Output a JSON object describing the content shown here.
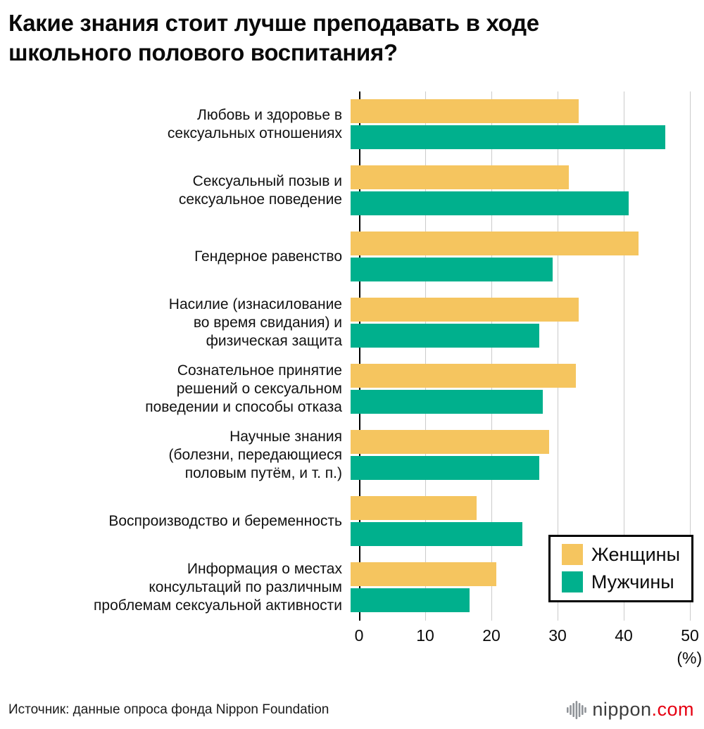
{
  "header": {
    "title": "Какие знания стоит лучше преподавать в ходе\nшкольного полового воспитания?"
  },
  "chart_data": {
    "type": "bar",
    "orientation": "horizontal",
    "title": "Какие знания стоит лучше преподавать в ходе школьного полового воспитания?",
    "categories": [
      "Любовь и здоровье в\nсексуальных отношениях",
      "Сексуальный позыв и\nсексуальное поведение",
      "Гендерное равенство",
      "Насилие (изнасилование\nво время свидания) и\nфизическая защита",
      "Сознательное принятие\nрешений о сексуальном\nповедении и способы отказа",
      "Научные знания\n(болезни, передающиеся\nполовым путём, и т. п.)",
      "Воспроизводство и беременность",
      "Информация о местах\nконсультаций по различным\nпроблемам сексуальной активности"
    ],
    "series": [
      {
        "name": "Женщины",
        "values": [
          34.5,
          33,
          43.5,
          34.5,
          34,
          30,
          19,
          22
        ]
      },
      {
        "name": "Мужчины",
        "values": [
          47.5,
          42,
          30.5,
          28.5,
          29,
          28.5,
          26,
          18
        ]
      }
    ],
    "xlim": [
      0,
      50
    ],
    "ticks": [
      0,
      10,
      20,
      30,
      40,
      50
    ],
    "unit_label": "(%)",
    "legend_position": "bottom-right",
    "grid": "vertical-gridlines"
  },
  "colors": {
    "women": "#f5c55f",
    "men": "#00b08d",
    "gridline": "#cbcbcb",
    "axis": "#000000",
    "logo_red": "#e60012"
  },
  "footer": {
    "source": "Источник: данные опроса фонда Nippon Foundation",
    "logo": {
      "icon": "nippon-soundwave-icon",
      "name": "nippon",
      "tld": ".com"
    }
  }
}
